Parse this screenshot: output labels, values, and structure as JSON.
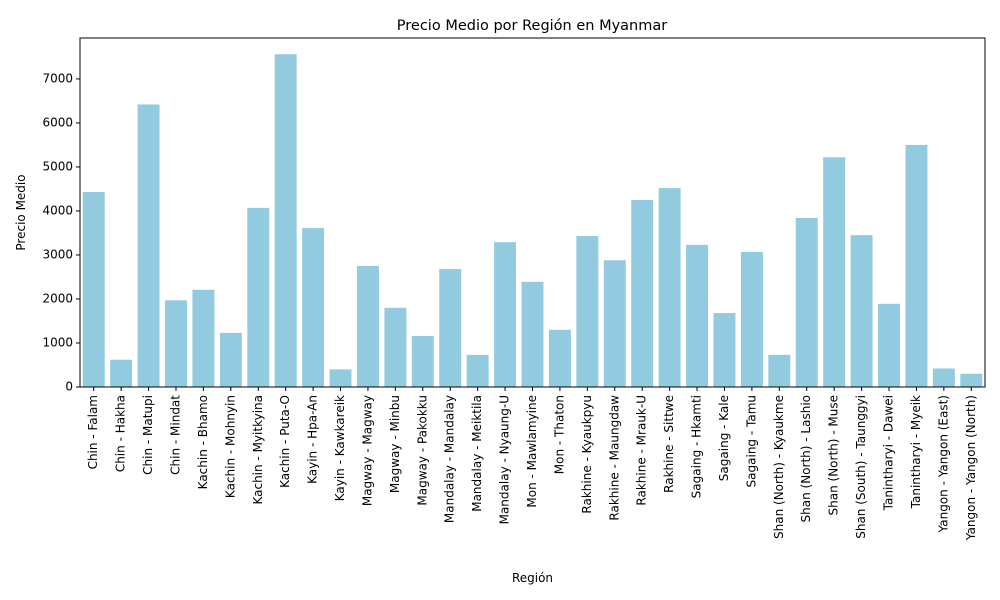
{
  "chart_data": {
    "type": "bar",
    "title": "Precio Medio por Región en Myanmar",
    "xlabel": "Región",
    "ylabel": "Precio Medio",
    "ylim": [
      0,
      7930
    ],
    "yticks": [
      0,
      1000,
      2000,
      3000,
      4000,
      5000,
      6000,
      7000
    ],
    "bar_color": "#92cadf",
    "grid": false,
    "categories": [
      "Chin - Falam",
      "Chin - Hakha",
      "Chin - Matupi",
      "Chin - Mindat",
      "Kachin - Bhamo",
      "Kachin - Mohnyin",
      "Kachin - Myitkyina",
      "Kachin - Puta-O",
      "Kayin - Hpa-An",
      "Kayin - Kawkareik",
      "Magway - Magway",
      "Magway - Minbu",
      "Magway - Pakokku",
      "Mandalay - Mandalay",
      "Mandalay - Meiktila",
      "Mandalay - Nyaung-U",
      "Mon - Mawlamyine",
      "Mon - Thaton",
      "Rakhine - Kyaukpyu",
      "Rakhine - Maungdaw",
      "Rakhine - Mrauk-U",
      "Rakhine - Sittwe",
      "Sagaing - Hkamti",
      "Sagaing - Kale",
      "Sagaing - Tamu",
      "Shan (North) - Kyaukme",
      "Shan (North) - Lashio",
      "Shan (North) - Muse",
      "Shan (South) - Taunggyi",
      "Tanintharyi - Dawei",
      "Tanintharyi - Myeik",
      "Yangon - Yangon (East)",
      "Yangon - Yangon (North)"
    ],
    "values": [
      4430,
      620,
      6420,
      1970,
      2210,
      1230,
      4070,
      7560,
      3610,
      400,
      2750,
      1800,
      1160,
      2680,
      730,
      3290,
      2390,
      1300,
      3430,
      2880,
      4250,
      4520,
      3230,
      1680,
      3070,
      730,
      3840,
      5220,
      3450,
      1890,
      5500,
      420,
      300
    ]
  }
}
